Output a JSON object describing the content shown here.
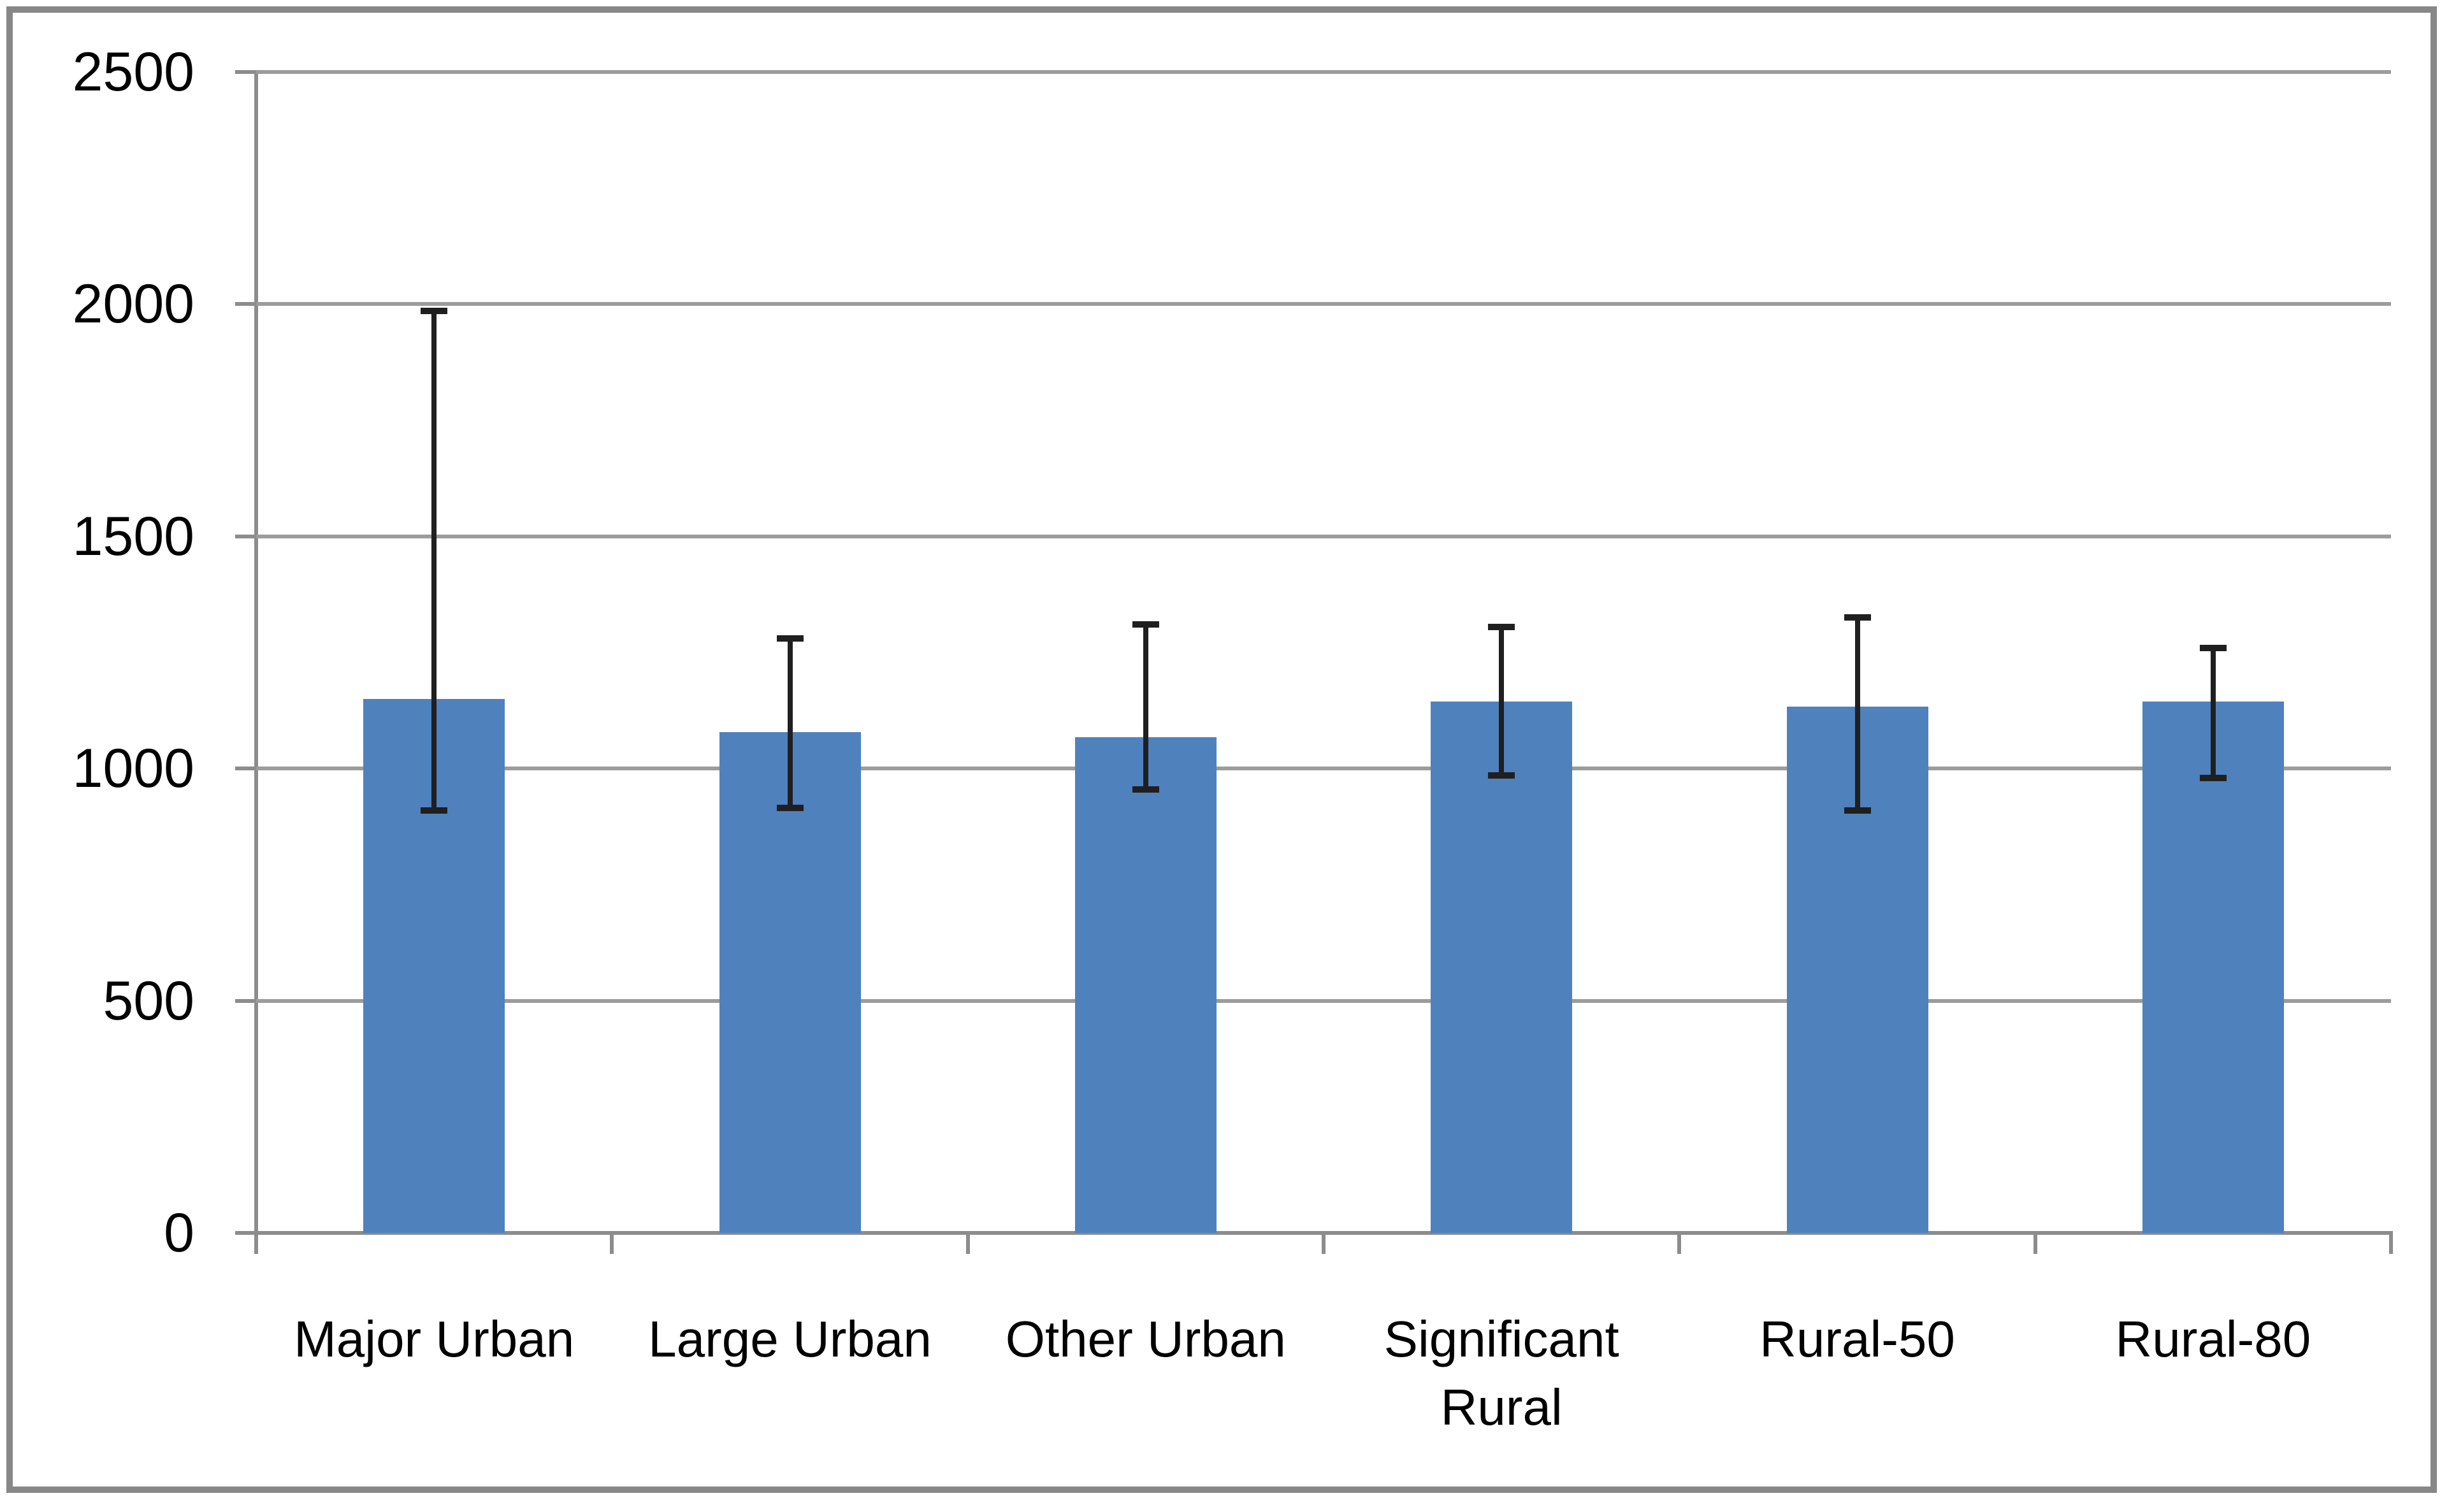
{
  "chart_data": {
    "type": "bar",
    "title": "",
    "categories": [
      "Major Urban",
      "Large Urban",
      "Other Urban",
      "Significant Rural",
      "Rural-50",
      "Rural-80"
    ],
    "values": [
      1150,
      1078,
      1067,
      1144,
      1134,
      1145
    ],
    "error_bars": {
      "top": [
        1985,
        1280,
        1310,
        1305,
        1325,
        1260
      ],
      "bottom": [
        910,
        915,
        955,
        985,
        910,
        980
      ]
    },
    "y_axis": {
      "min": 0,
      "max": 2500,
      "tick_step": 500,
      "tick_labels": [
        "0",
        "500",
        "1000",
        "1500",
        "2000",
        "2500"
      ]
    },
    "x_axis": {
      "label": ""
    },
    "legend_position": "none",
    "grid": true,
    "colors": {
      "bar_fill": "#4F81BD",
      "gridline": "#9C9C9C",
      "axis_line": "#8C8C8C",
      "tick": "#8C8C8C",
      "error_bar": "#1f1f1f",
      "frame_border": "#878787",
      "background": "#ffffff",
      "text": "#000000"
    }
  }
}
